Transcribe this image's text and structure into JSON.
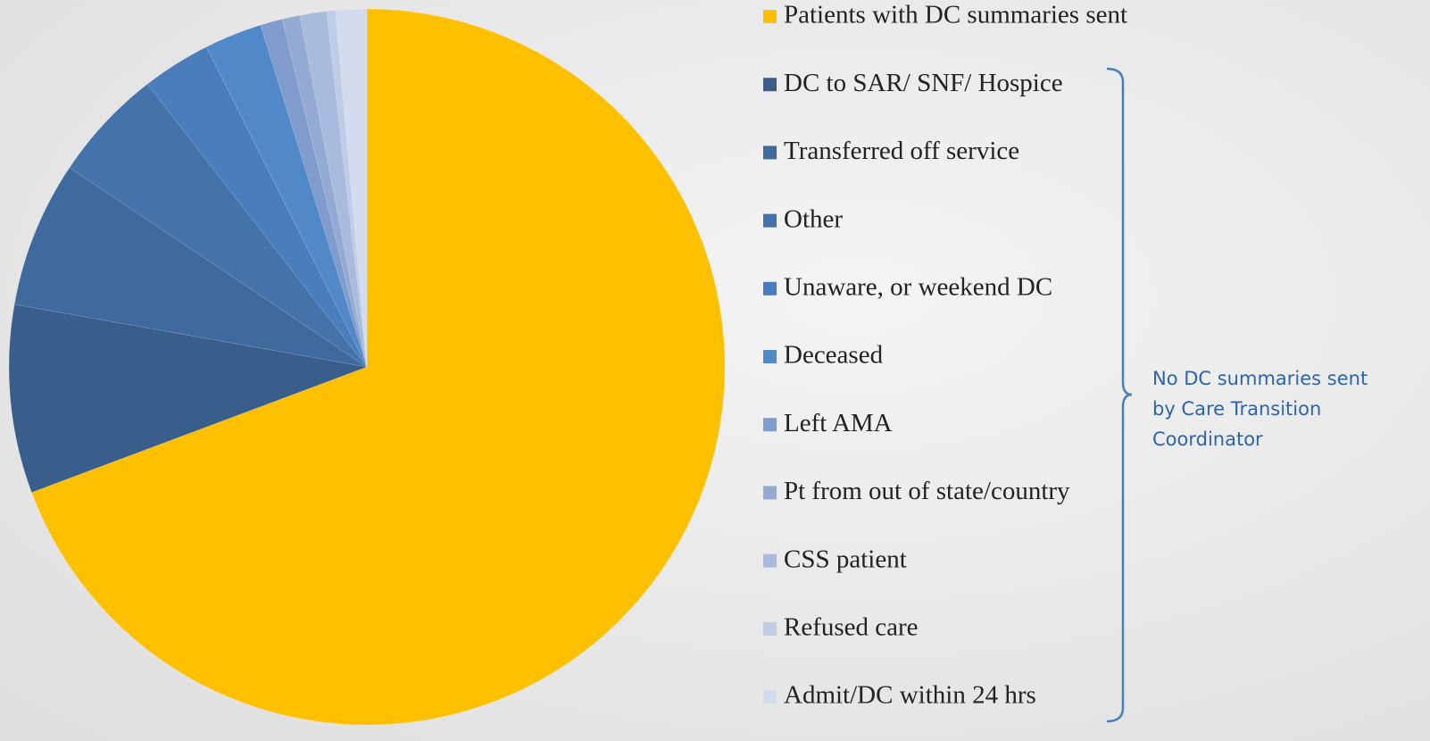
{
  "chart_data": {
    "type": "pie",
    "categories": [
      "Patients with DC summaries sent",
      "DC to SAR/ SNF/ Hospice",
      "Transferred off service",
      "Other",
      "Unaware, or weekend DC",
      "Deceased",
      "Left AMA",
      "Pt from out of state/country",
      "CSS patient",
      "Refused care",
      "Admit/DC within 24 hrs"
    ],
    "values": [
      69.3,
      8.5,
      6.6,
      5.1,
      3.1,
      2.6,
      1.0,
      0.8,
      1.2,
      0.4,
      1.4
    ],
    "colors": [
      "#FFC000",
      "#3A5E8C",
      "#3F6A9E",
      "#4472AA",
      "#4A7DBB",
      "#5088C8",
      "#7F9CCC",
      "#94AAD3",
      "#A9BBDD",
      "#BFCCE6",
      "#D3DCEE"
    ],
    "annotation": [
      "No DC summaries sent",
      "by Care Transition",
      "Coordinator"
    ]
  }
}
